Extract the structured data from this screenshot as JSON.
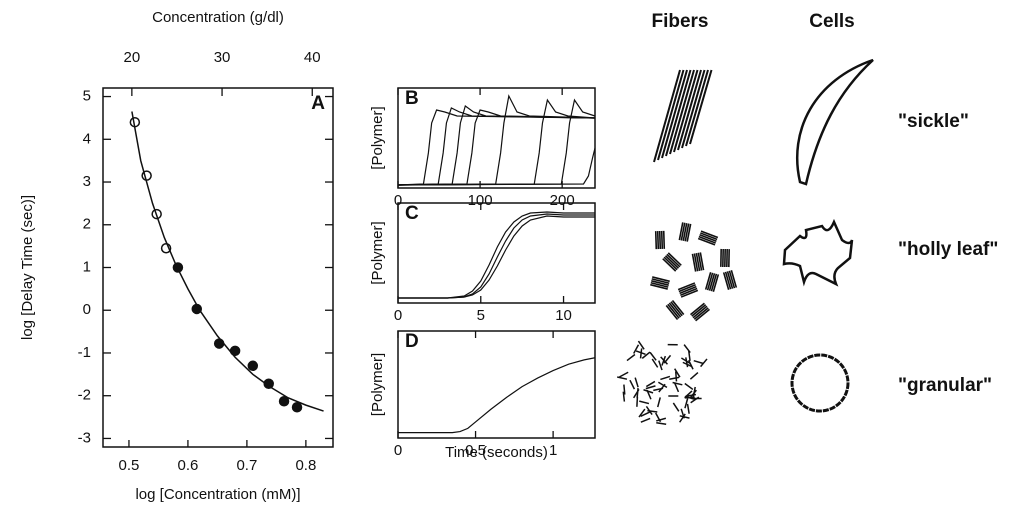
{
  "chart_data": [
    {
      "type": "scatter",
      "label": "A",
      "xlabel": "log [Concentration (mM)]",
      "ylabel": "log [Delay Time (sec)]",
      "x2label": "Concentration (g/dl)",
      "xlim": [
        0.456,
        0.846
      ],
      "xticks": [
        0.5,
        0.6,
        0.7,
        0.8
      ],
      "ylim": [
        -3.2,
        5.2
      ],
      "yticks": [
        -3,
        -2,
        -1,
        0,
        1,
        2,
        3,
        4,
        5
      ],
      "x2lim": [
        16.8,
        42.3
      ],
      "x2ticks": [
        20,
        30,
        40
      ],
      "series": [
        {
          "style": "open",
          "x": [
            0.51,
            0.53,
            0.547,
            0.563
          ],
          "values": [
            4.4,
            3.15,
            2.25,
            1.45
          ]
        },
        {
          "style": "filled",
          "x": [
            0.583,
            0.615,
            0.653,
            0.68,
            0.71,
            0.737,
            0.763,
            0.785
          ],
          "values": [
            1.0,
            0.03,
            -0.78,
            -0.95,
            -1.3,
            -1.72,
            -2.13,
            -2.27
          ]
        },
        {
          "style": "line",
          "x": [
            0.505,
            0.52,
            0.54,
            0.56,
            0.58,
            0.6,
            0.62,
            0.65,
            0.68,
            0.71,
            0.74,
            0.77,
            0.8,
            0.83
          ],
          "values": [
            4.65,
            3.5,
            2.5,
            1.7,
            1.05,
            0.5,
            0.0,
            -0.6,
            -1.1,
            -1.5,
            -1.8,
            -2.05,
            -2.22,
            -2.36
          ]
        }
      ]
    },
    {
      "type": "line",
      "label": "B",
      "ylabel": "[Polymer]",
      "xlim": [
        0,
        240
      ],
      "xticks": [
        0,
        100,
        200
      ],
      "ylim": [
        0,
        1
      ],
      "series": [
        {
          "x": [
            0,
            31,
            37,
            41,
            47,
            57,
            72,
            240
          ],
          "values": [
            0.03,
            0.04,
            0.35,
            0.65,
            0.78,
            0.76,
            0.72,
            0.7
          ]
        },
        {
          "x": [
            0,
            49,
            55,
            59,
            65,
            75,
            90,
            240
          ],
          "values": [
            0.03,
            0.04,
            0.35,
            0.65,
            0.8,
            0.76,
            0.72,
            0.7
          ]
        },
        {
          "x": [
            0,
            66,
            72,
            76,
            82,
            92,
            107,
            240
          ],
          "values": [
            0.03,
            0.04,
            0.35,
            0.65,
            0.82,
            0.76,
            0.72,
            0.7
          ]
        },
        {
          "x": [
            0,
            84,
            90,
            94,
            100,
            110,
            125,
            240
          ],
          "values": [
            0.03,
            0.04,
            0.35,
            0.65,
            0.78,
            0.76,
            0.72,
            0.7
          ]
        },
        {
          "x": [
            0,
            119,
            125,
            129,
            135,
            145,
            160,
            240
          ],
          "values": [
            0.03,
            0.04,
            0.35,
            0.65,
            0.92,
            0.76,
            0.72,
            0.7
          ]
        },
        {
          "x": [
            0,
            166,
            172,
            176,
            182,
            192,
            207,
            240
          ],
          "values": [
            0.03,
            0.04,
            0.35,
            0.65,
            0.88,
            0.76,
            0.72,
            0.7
          ]
        },
        {
          "x": [
            0,
            199,
            205,
            209,
            215,
            225,
            240
          ],
          "values": [
            0.03,
            0.04,
            0.35,
            0.65,
            0.88,
            0.76,
            0.72
          ]
        },
        {
          "x": [
            0,
            226,
            232,
            237,
            240
          ],
          "values": [
            0.03,
            0.04,
            0.12,
            0.3,
            0.4
          ]
        }
      ]
    },
    {
      "type": "line",
      "label": "C",
      "ylabel": "[Polymer]",
      "xlim": [
        0,
        11.9
      ],
      "xticks": [
        0,
        5,
        10
      ],
      "ylim": [
        0,
        1
      ],
      "series": [
        {
          "x": [
            0,
            3,
            4,
            4.5,
            5,
            5.5,
            6,
            6.5,
            7,
            7.5,
            8,
            9,
            10,
            11.9
          ],
          "values": [
            0.05,
            0.05,
            0.07,
            0.12,
            0.22,
            0.38,
            0.56,
            0.71,
            0.81,
            0.87,
            0.9,
            0.91,
            0.9,
            0.9
          ]
        },
        {
          "x": [
            0,
            3,
            4,
            4.5,
            5,
            5.5,
            6,
            6.5,
            7,
            7.5,
            8,
            9,
            10,
            11.9
          ],
          "values": [
            0.05,
            0.05,
            0.06,
            0.09,
            0.16,
            0.29,
            0.46,
            0.62,
            0.75,
            0.83,
            0.87,
            0.89,
            0.88,
            0.88
          ]
        },
        {
          "x": [
            0,
            3,
            4,
            4.5,
            5,
            5.5,
            6,
            6.5,
            7,
            7.5,
            8,
            9,
            10,
            11.9
          ],
          "values": [
            0.05,
            0.05,
            0.06,
            0.08,
            0.13,
            0.23,
            0.37,
            0.53,
            0.67,
            0.77,
            0.83,
            0.87,
            0.86,
            0.86
          ]
        }
      ]
    },
    {
      "type": "line",
      "label": "D",
      "ylabel": "[Polymer]",
      "xlabel": "Time (seconds)",
      "xlim": [
        0,
        1.27
      ],
      "xticks": [
        0,
        0.5,
        1
      ],
      "ylim": [
        0,
        1
      ],
      "series": [
        {
          "x": [
            0,
            0.35,
            0.4,
            0.45,
            0.5,
            0.6,
            0.7,
            0.8,
            0.9,
            1,
            1.1,
            1.2,
            1.27
          ],
          "values": [
            0.05,
            0.05,
            0.06,
            0.09,
            0.15,
            0.27,
            0.38,
            0.48,
            0.56,
            0.63,
            0.69,
            0.73,
            0.75
          ]
        }
      ]
    }
  ],
  "illustration": {
    "column_headers": [
      "Fibers",
      "Cells"
    ],
    "row_labels": [
      "\"sickle\"",
      "\"holly leaf\"",
      "\"granular\""
    ]
  }
}
